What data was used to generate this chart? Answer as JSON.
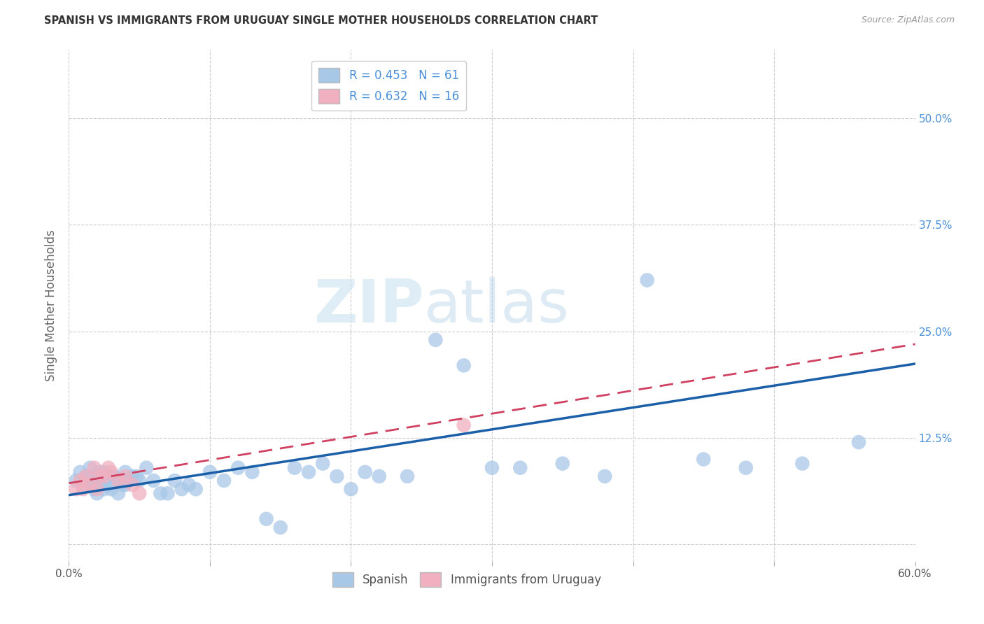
{
  "title": "SPANISH VS IMMIGRANTS FROM URUGUAY SINGLE MOTHER HOUSEHOLDS CORRELATION CHART",
  "source": "Source: ZipAtlas.com",
  "ylabel": "Single Mother Households",
  "xlim": [
    0.0,
    0.6
  ],
  "ylim": [
    -0.02,
    0.58
  ],
  "yticks": [
    0.0,
    0.125,
    0.25,
    0.375,
    0.5
  ],
  "ytick_labels": [
    "",
    "12.5%",
    "25.0%",
    "37.5%",
    "50.0%"
  ],
  "xticks": [
    0.0,
    0.1,
    0.2,
    0.3,
    0.4,
    0.5,
    0.6
  ],
  "xtick_labels": [
    "0.0%",
    "",
    "",
    "",
    "",
    "",
    "60.0%"
  ],
  "blue_color": "#a8c8e8",
  "blue_line_color": "#1a5fa8",
  "pink_color": "#f0b0c0",
  "pink_line_color": "#d04060",
  "legend_blue_label": "R = 0.453   N = 61",
  "legend_pink_label": "R = 0.632   N = 16",
  "legend1_name": "Spanish",
  "legend2_name": "Immigrants from Uruguay",
  "blue_scatter_x": [
    0.005,
    0.008,
    0.01,
    0.012,
    0.015,
    0.015,
    0.018,
    0.018,
    0.02,
    0.02,
    0.022,
    0.022,
    0.025,
    0.025,
    0.025,
    0.028,
    0.03,
    0.03,
    0.032,
    0.035,
    0.035,
    0.038,
    0.04,
    0.04,
    0.042,
    0.045,
    0.048,
    0.05,
    0.055,
    0.06,
    0.065,
    0.07,
    0.075,
    0.08,
    0.085,
    0.09,
    0.1,
    0.11,
    0.12,
    0.13,
    0.14,
    0.15,
    0.16,
    0.17,
    0.18,
    0.19,
    0.2,
    0.21,
    0.22,
    0.24,
    0.26,
    0.28,
    0.3,
    0.32,
    0.35,
    0.38,
    0.41,
    0.45,
    0.48,
    0.52,
    0.56
  ],
  "blue_scatter_y": [
    0.075,
    0.085,
    0.07,
    0.08,
    0.075,
    0.09,
    0.065,
    0.08,
    0.06,
    0.075,
    0.07,
    0.085,
    0.065,
    0.075,
    0.085,
    0.07,
    0.065,
    0.08,
    0.08,
    0.06,
    0.075,
    0.07,
    0.07,
    0.085,
    0.075,
    0.08,
    0.08,
    0.075,
    0.09,
    0.075,
    0.06,
    0.06,
    0.075,
    0.065,
    0.07,
    0.065,
    0.085,
    0.075,
    0.09,
    0.085,
    0.03,
    0.02,
    0.09,
    0.085,
    0.095,
    0.08,
    0.065,
    0.085,
    0.08,
    0.08,
    0.24,
    0.21,
    0.09,
    0.09,
    0.095,
    0.08,
    0.31,
    0.1,
    0.09,
    0.095,
    0.12
  ],
  "pink_scatter_x": [
    0.005,
    0.008,
    0.01,
    0.012,
    0.015,
    0.018,
    0.02,
    0.022,
    0.025,
    0.028,
    0.03,
    0.035,
    0.04,
    0.045,
    0.05,
    0.28
  ],
  "pink_scatter_y": [
    0.065,
    0.075,
    0.065,
    0.08,
    0.07,
    0.09,
    0.065,
    0.08,
    0.08,
    0.09,
    0.085,
    0.075,
    0.08,
    0.07,
    0.06,
    0.14
  ],
  "blue_line_y0": 0.058,
  "blue_line_y1": 0.212,
  "pink_line_y0": 0.072,
  "pink_line_y1": 0.235,
  "watermark_zip": "ZIP",
  "watermark_atlas": "atlas",
  "background_color": "#ffffff",
  "grid_color": "#cccccc",
  "right_tick_color": "#4a90d9",
  "scatter_marker_size": 220
}
